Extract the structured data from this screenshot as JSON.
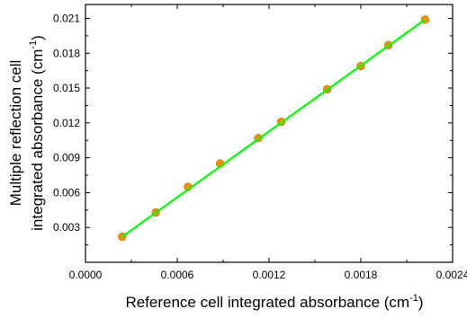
{
  "chart_data": {
    "type": "scatter",
    "xlabel_main": "Reference cell integrated absorbance (cm",
    "xlabel_sup": "-1",
    "xlabel_end": ")",
    "ylabel_line1": "Multiple reflection cell",
    "ylabel_line2_main": "integrated absorbance (cm",
    "ylabel_line2_sup": "-1",
    "ylabel_line2_end": ")",
    "xlim": [
      0.0,
      0.0024
    ],
    "ylim": [
      0.0,
      0.0222
    ],
    "xticks": [
      0.0,
      0.0006,
      0.0012,
      0.0018,
      0.0024
    ],
    "xtick_labels": [
      "0.0000",
      "0.0006",
      "0.0012",
      "0.0018",
      "0.0024"
    ],
    "yticks": [
      0.003,
      0.006,
      0.009,
      0.012,
      0.015,
      0.018,
      0.021
    ],
    "ytick_labels": [
      "0.003",
      "0.006",
      "0.009",
      "0.012",
      "0.015",
      "0.018",
      "0.021"
    ],
    "grid": false,
    "legend": "none",
    "series": [
      {
        "values_x": [
          0.00024,
          0.00046,
          0.00067,
          0.00088,
          0.00113,
          0.00128,
          0.00158,
          0.0018,
          0.00198,
          0.00222
        ],
        "values_y": [
          0.0022,
          0.0043,
          0.0065,
          0.0085,
          0.0107,
          0.0121,
          0.0149,
          0.0169,
          0.0187,
          0.0209
        ],
        "marker_color": "#ff8c00",
        "marker_edge_color": "#b8860b"
      }
    ],
    "fit_line": {
      "x": [
        0.00024,
        0.00222
      ],
      "y": [
        0.0022,
        0.0209
      ],
      "color": "#00ff00"
    },
    "frame_color": "#000000"
  }
}
